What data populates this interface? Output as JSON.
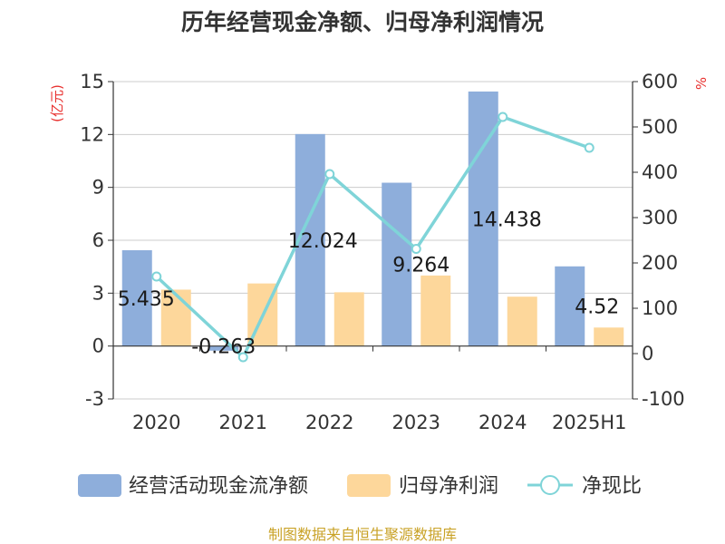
{
  "chart_data": {
    "type": "bar",
    "title": "历年经营现金净额、归母净利润情况",
    "categories": [
      "2020",
      "2021",
      "2022",
      "2023",
      "2024",
      "2025H1"
    ],
    "y_left": {
      "unit": "(亿元)",
      "ylim": [
        -3,
        15
      ],
      "ticks": [
        "-3",
        "0",
        "3",
        "6",
        "9",
        "12",
        "15"
      ]
    },
    "y_right": {
      "unit": "%",
      "ylim": [
        -100,
        600
      ],
      "ticks": [
        "-100",
        "0",
        "100",
        "200",
        "300",
        "400",
        "500",
        "600"
      ]
    },
    "series": [
      {
        "name": "经营活动现金流净额",
        "type": "bar",
        "axis": "left",
        "color": "#8eaedb",
        "values": [
          5.435,
          -0.263,
          12.024,
          9.264,
          14.438,
          4.52
        ],
        "labels": [
          "5.435",
          "-0.263",
          "12.024",
          "9.264",
          "14.438",
          "4.52"
        ]
      },
      {
        "name": "归母净利润",
        "type": "bar",
        "axis": "left",
        "color": "#fdd79b",
        "values": [
          3.2,
          3.55,
          3.05,
          4.0,
          2.8,
          1.05
        ]
      },
      {
        "name": "净现比",
        "type": "line",
        "axis": "right",
        "color": "#7fd4d8",
        "values": [
          170,
          -8,
          396,
          231,
          522,
          454
        ]
      }
    ],
    "grid": true,
    "legend_position": "bottom"
  },
  "source_text": "制图数据来自恒生聚源数据库"
}
